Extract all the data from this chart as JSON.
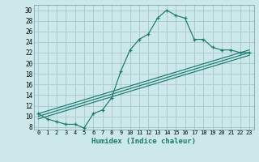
{
  "title": "",
  "xlabel": "Humidex (Indice chaleur)",
  "bg_color": "#cce8ea",
  "line_color": "#1a7a6e",
  "grid_color": "#aacdd0",
  "xlim": [
    -0.5,
    23.5
  ],
  "ylim": [
    7.5,
    31
  ],
  "xticks": [
    0,
    1,
    2,
    3,
    4,
    5,
    6,
    7,
    8,
    9,
    10,
    11,
    12,
    13,
    14,
    15,
    16,
    17,
    18,
    19,
    20,
    21,
    22,
    23
  ],
  "yticks": [
    8,
    10,
    12,
    14,
    16,
    18,
    20,
    22,
    24,
    26,
    28,
    30
  ],
  "main_x": [
    0,
    1,
    2,
    3,
    4,
    5,
    6,
    7,
    8,
    9,
    10,
    11,
    12,
    13,
    14,
    15,
    16,
    17,
    18,
    19,
    20,
    21,
    22,
    23
  ],
  "main_y": [
    10.5,
    9.5,
    9.0,
    8.5,
    8.5,
    7.8,
    10.5,
    11.2,
    13.5,
    18.5,
    22.5,
    24.5,
    25.5,
    28.5,
    30.0,
    29.0,
    28.5,
    24.5,
    24.5,
    23.0,
    22.5,
    22.5,
    22.0,
    22.0
  ],
  "line2_x": [
    0,
    23
  ],
  "line2_y": [
    10.0,
    22.0
  ],
  "line3_x": [
    0,
    23
  ],
  "line3_y": [
    9.5,
    21.5
  ],
  "line4_x": [
    0,
    23
  ],
  "line4_y": [
    10.5,
    22.5
  ]
}
